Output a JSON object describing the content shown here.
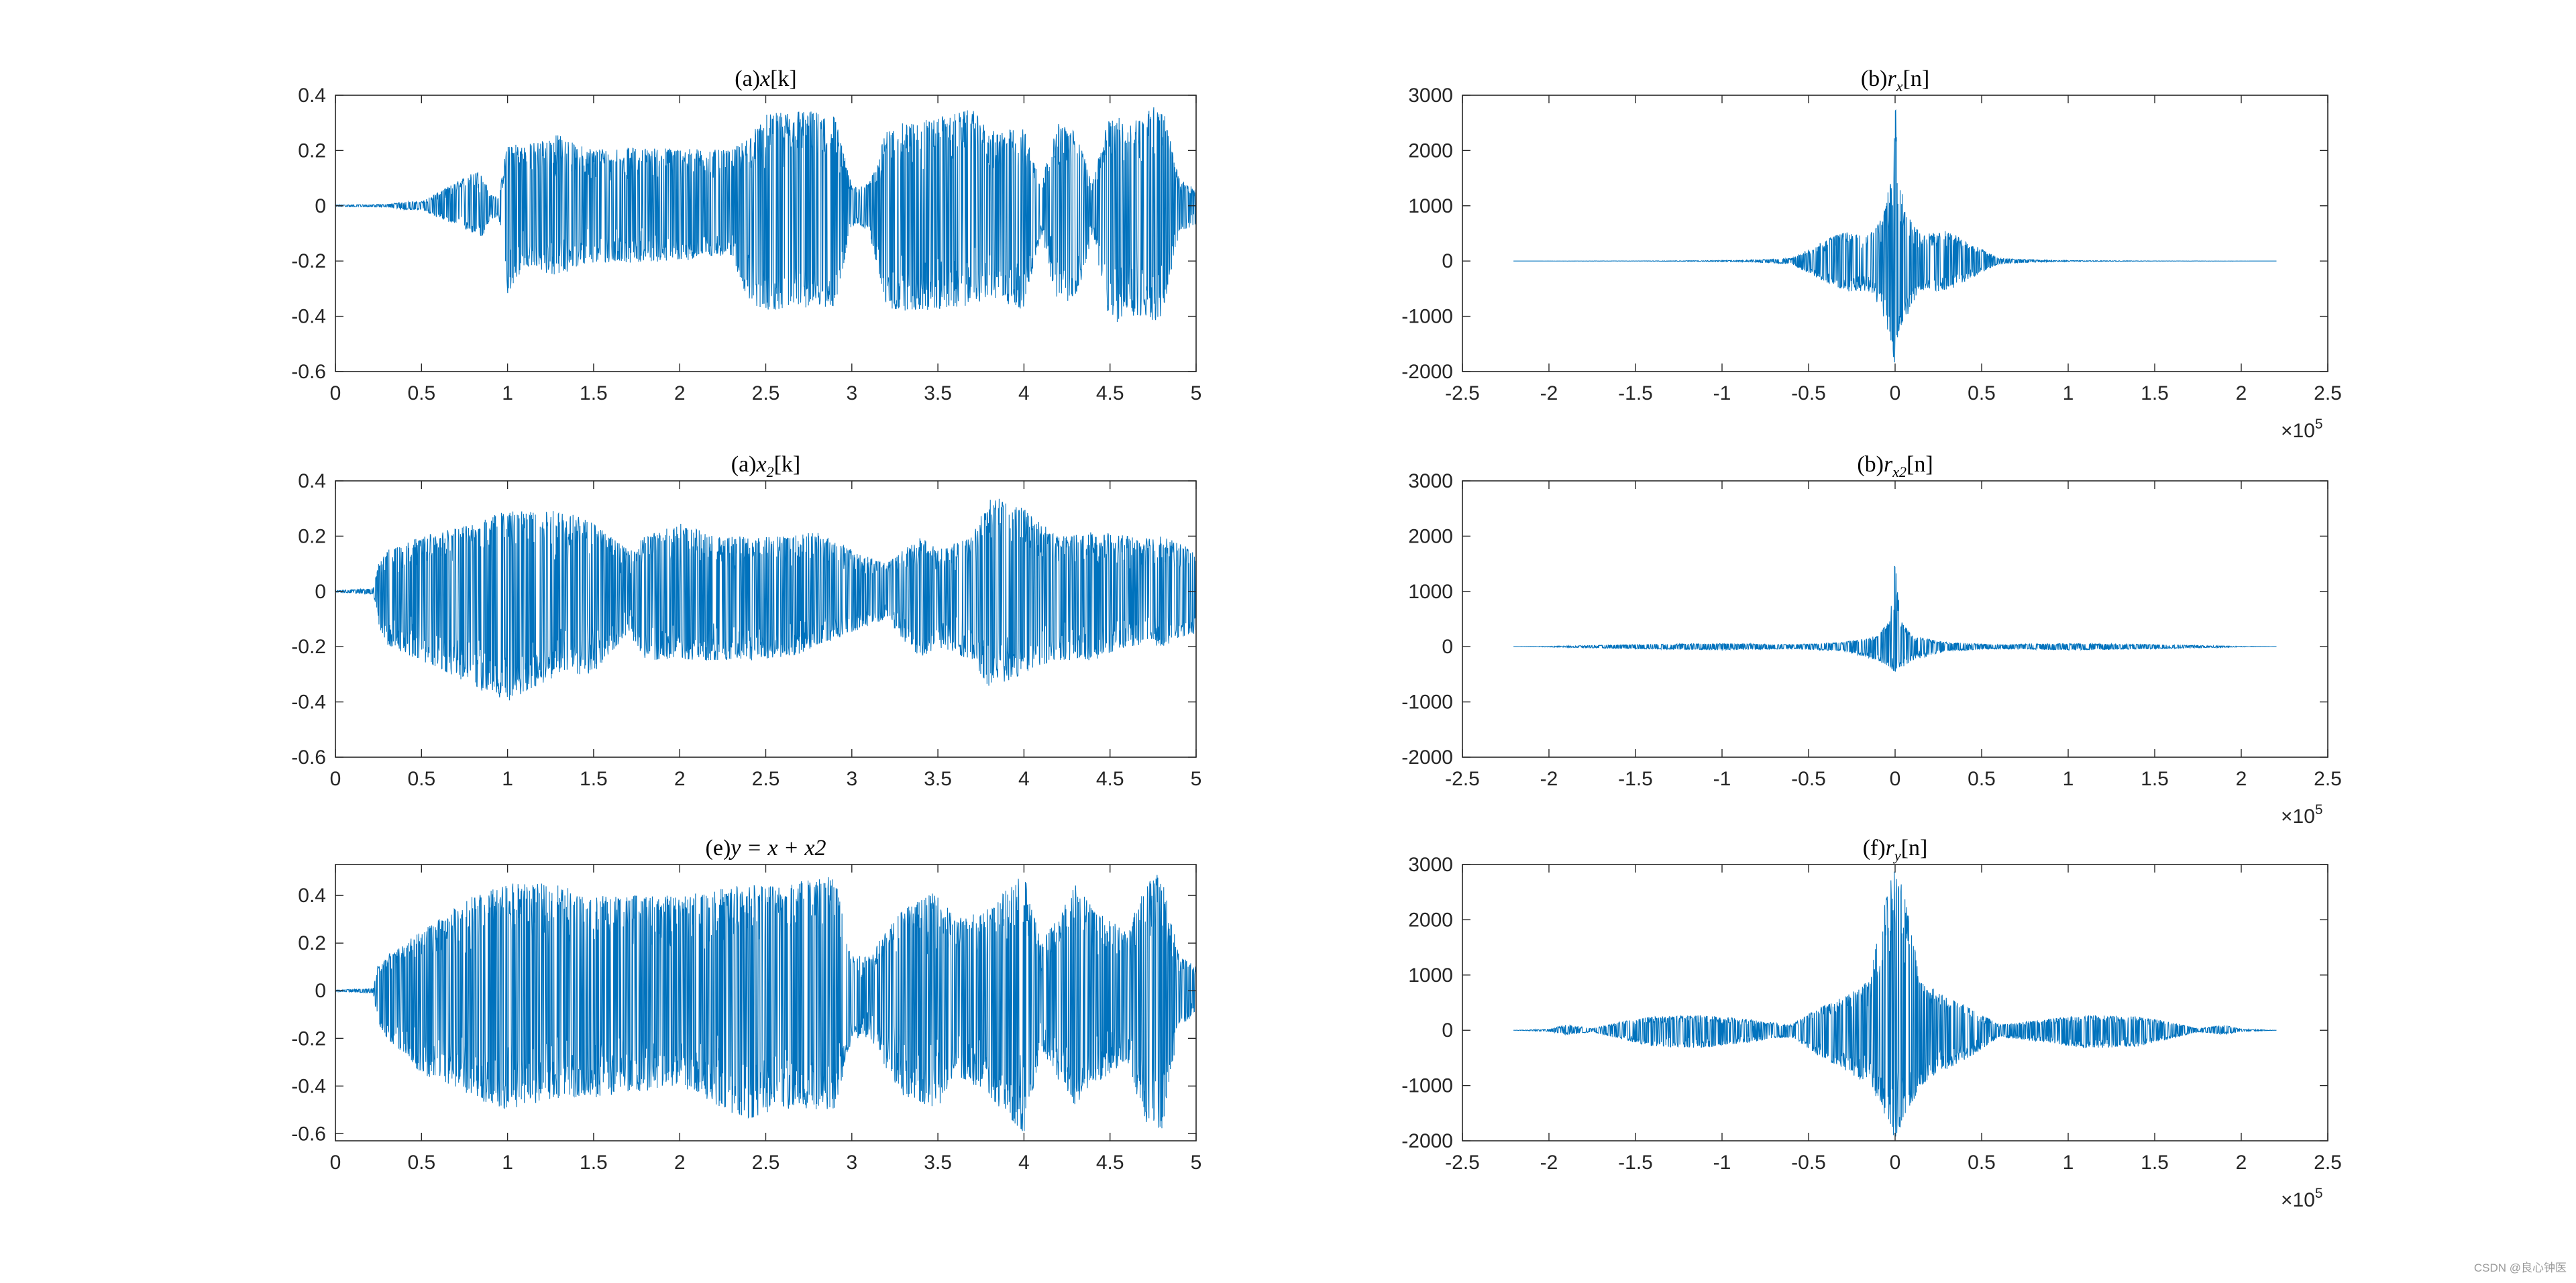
{
  "colors": {
    "signal": "#0072BD",
    "axes": "#262626",
    "background": "#ffffff"
  },
  "watermark": "CSDN @良心钟医",
  "chart_data": [
    {
      "id": "a",
      "type": "line",
      "title_prefix": "(a)",
      "title_var": "x",
      "title_sub": "",
      "title_arg": "[k]",
      "xlim": [
        0,
        5
      ],
      "ylim": [
        -0.6,
        0.4
      ],
      "xticks": [
        0,
        0.5,
        1,
        1.5,
        2,
        2.5,
        3,
        3.5,
        4,
        4.5,
        5
      ],
      "yticks": [
        -0.6,
        -0.4,
        -0.2,
        0,
        0.2,
        0.4
      ],
      "xtick_labels": [
        "0",
        "0.5",
        "1",
        "1.5",
        "2",
        "2.5",
        "3",
        "3.5",
        "4",
        "4.5",
        "5"
      ],
      "ytick_labels": [
        "-0.6",
        "-0.4",
        "-0.2",
        "0",
        "0.2",
        "0.4"
      ],
      "exponent_label": "",
      "envelope": {
        "x": [
          0,
          0.3,
          0.4,
          0.5,
          0.8,
          0.85,
          0.9,
          0.95,
          1.0,
          1.1,
          1.3,
          1.4,
          1.5,
          2.0,
          2.3,
          2.4,
          2.5,
          2.7,
          2.9,
          3.0,
          3.1,
          3.2,
          3.3,
          3.5,
          3.7,
          3.8,
          4.0,
          4.1,
          4.2,
          4.3,
          4.4,
          4.5,
          4.6,
          4.8,
          4.9,
          5.0
        ],
        "upper": [
          0.003,
          0.005,
          0.015,
          0.015,
          0.12,
          0.13,
          0.04,
          0.03,
          0.24,
          0.22,
          0.26,
          0.22,
          0.21,
          0.21,
          0.2,
          0.25,
          0.33,
          0.35,
          0.33,
          0.07,
          0.08,
          0.27,
          0.3,
          0.32,
          0.35,
          0.27,
          0.28,
          0.09,
          0.3,
          0.27,
          0.09,
          0.34,
          0.3,
          0.38,
          0.1,
          0.06
        ],
        "lower": [
          -0.003,
          -0.005,
          -0.015,
          -0.015,
          -0.1,
          -0.12,
          -0.05,
          -0.04,
          -0.32,
          -0.22,
          -0.26,
          -0.22,
          -0.21,
          -0.2,
          -0.18,
          -0.35,
          -0.38,
          -0.37,
          -0.37,
          -0.07,
          -0.09,
          -0.38,
          -0.38,
          -0.38,
          -0.36,
          -0.33,
          -0.38,
          -0.1,
          -0.38,
          -0.35,
          -0.1,
          -0.44,
          -0.4,
          -0.42,
          -0.1,
          -0.07
        ]
      }
    },
    {
      "id": "b",
      "type": "line",
      "title_prefix": "(b)",
      "title_var": "r",
      "title_sub": "x",
      "title_arg": "[n]",
      "xlim": [
        -250000,
        250000
      ],
      "ylim": [
        -2000,
        3000
      ],
      "xticks": [
        -250000,
        -200000,
        -150000,
        -100000,
        -50000,
        0,
        50000,
        100000,
        150000,
        200000,
        250000
      ],
      "yticks": [
        -2000,
        -1000,
        0,
        1000,
        2000,
        3000
      ],
      "xtick_labels": [
        "-2.5",
        "-2",
        "-1.5",
        "-1",
        "-0.5",
        "0",
        "0.5",
        "1",
        "1.5",
        "2",
        "2.5"
      ],
      "ytick_labels": [
        "-2000",
        "-1000",
        "0",
        "1000",
        "2000",
        "3000"
      ],
      "exponent_label": "×10",
      "exponent_power": "5",
      "envelope": {
        "x": [
          -220500,
          -150000,
          -90000,
          -60000,
          -45000,
          -30000,
          -15000,
          -8000,
          -2000,
          0,
          2000,
          8000,
          15000,
          30000,
          45000,
          60000,
          90000,
          150000,
          220500
        ],
        "upper": [
          0,
          2,
          10,
          50,
          300,
          550,
          480,
          800,
          1500,
          3000,
          1500,
          800,
          480,
          550,
          300,
          50,
          10,
          2,
          0
        ],
        "lower": [
          0,
          -2,
          -10,
          -50,
          -300,
          -550,
          -550,
          -900,
          -1500,
          -2000,
          -1500,
          -900,
          -550,
          -550,
          -300,
          -50,
          -10,
          -2,
          0
        ]
      }
    },
    {
      "id": "c",
      "type": "line",
      "title_prefix": "(a)",
      "title_var": "x",
      "title_sub": "2",
      "title_arg": "[k]",
      "xlim": [
        0,
        5
      ],
      "ylim": [
        -0.6,
        0.4
      ],
      "xticks": [
        0,
        0.5,
        1,
        1.5,
        2,
        2.5,
        3,
        3.5,
        4,
        4.5,
        5
      ],
      "yticks": [
        -0.6,
        -0.4,
        -0.2,
        0,
        0.2,
        0.4
      ],
      "xtick_labels": [
        "0",
        "0.5",
        "1",
        "1.5",
        "2",
        "2.5",
        "3",
        "3.5",
        "4",
        "4.5",
        "5"
      ],
      "ytick_labels": [
        "-0.6",
        "-0.4",
        "-0.2",
        "0",
        "0.2",
        "0.4"
      ],
      "exponent_label": "",
      "envelope": {
        "x": [
          0,
          0.22,
          0.25,
          0.3,
          0.5,
          0.8,
          1.0,
          1.3,
          1.5,
          1.7,
          1.8,
          2.0,
          2.2,
          2.4,
          2.6,
          2.8,
          3.0,
          3.2,
          3.4,
          3.5,
          3.7,
          3.8,
          4.0,
          4.2,
          4.4,
          4.6,
          4.8,
          5.0
        ],
        "upper": [
          0.003,
          0.01,
          0.1,
          0.15,
          0.2,
          0.25,
          0.3,
          0.3,
          0.25,
          0.15,
          0.2,
          0.25,
          0.2,
          0.2,
          0.2,
          0.22,
          0.15,
          0.1,
          0.2,
          0.15,
          0.2,
          0.35,
          0.3,
          0.2,
          0.22,
          0.2,
          0.2,
          0.15
        ],
        "lower": [
          -0.003,
          -0.01,
          -0.12,
          -0.2,
          -0.25,
          -0.35,
          -0.4,
          -0.3,
          -0.3,
          -0.15,
          -0.25,
          -0.25,
          -0.25,
          -0.25,
          -0.25,
          -0.2,
          -0.15,
          -0.1,
          -0.25,
          -0.2,
          -0.25,
          -0.35,
          -0.3,
          -0.25,
          -0.25,
          -0.2,
          -0.2,
          -0.15
        ]
      }
    },
    {
      "id": "d",
      "type": "line",
      "title_prefix": "(b)",
      "title_var": "r",
      "title_sub": "x2",
      "title_arg": "[n]",
      "xlim": [
        -250000,
        250000
      ],
      "ylim": [
        -2000,
        3000
      ],
      "xticks": [
        -250000,
        -200000,
        -150000,
        -100000,
        -50000,
        0,
        50000,
        100000,
        150000,
        200000,
        250000
      ],
      "yticks": [
        -2000,
        -1000,
        0,
        1000,
        2000,
        3000
      ],
      "xtick_labels": [
        "-2.5",
        "-2",
        "-1.5",
        "-1",
        "-0.5",
        "0",
        "0.5",
        "1",
        "1.5",
        "2",
        "2.5"
      ],
      "ytick_labels": [
        "-2000",
        "-1000",
        "0",
        "1000",
        "2000",
        "3000"
      ],
      "exponent_label": "×10",
      "exponent_power": "5",
      "envelope": {
        "x": [
          -220500,
          -200000,
          -150000,
          -100000,
          -60000,
          -30000,
          -10000,
          -3000,
          0,
          3000,
          10000,
          30000,
          60000,
          100000,
          150000,
          200000,
          220500
        ],
        "upper": [
          0,
          5,
          40,
          60,
          40,
          80,
          200,
          500,
          1600,
          500,
          200,
          80,
          40,
          60,
          40,
          5,
          0
        ],
        "lower": [
          0,
          -5,
          -40,
          -60,
          -40,
          -80,
          -250,
          -400,
          -500,
          -400,
          -250,
          -80,
          -40,
          -60,
          -40,
          -5,
          0
        ]
      }
    },
    {
      "id": "e",
      "type": "line",
      "title_prefix": "(e)",
      "title_var": "y = x + x2",
      "title_sub": "",
      "title_arg": "",
      "xlim": [
        0,
        5
      ],
      "ylim": [
        -0.63,
        0.53
      ],
      "xticks": [
        0,
        0.5,
        1,
        1.5,
        2,
        2.5,
        3,
        3.5,
        4,
        4.5,
        5
      ],
      "yticks": [
        -0.6,
        -0.4,
        -0.2,
        0,
        0.2,
        0.4
      ],
      "xtick_labels": [
        "0",
        "0.5",
        "1",
        "1.5",
        "2",
        "2.5",
        "3",
        "3.5",
        "4",
        "4.5",
        "5"
      ],
      "ytick_labels": [
        "-0.6",
        "-0.4",
        "-0.2",
        "0",
        "0.2",
        "0.4"
      ],
      "exponent_label": "",
      "envelope": {
        "x": [
          0,
          0.22,
          0.25,
          0.3,
          0.5,
          0.8,
          1.0,
          1.3,
          1.5,
          2.0,
          2.4,
          2.6,
          2.9,
          3.0,
          3.1,
          3.3,
          3.5,
          3.6,
          3.8,
          4.0,
          4.1,
          4.3,
          4.4,
          4.6,
          4.7,
          4.8,
          4.9,
          5.0
        ],
        "upper": [
          0.003,
          0.01,
          0.12,
          0.15,
          0.25,
          0.4,
          0.45,
          0.45,
          0.4,
          0.4,
          0.45,
          0.45,
          0.5,
          0.15,
          0.15,
          0.35,
          0.42,
          0.3,
          0.35,
          0.5,
          0.2,
          0.45,
          0.35,
          0.25,
          0.45,
          0.5,
          0.15,
          0.1
        ],
        "lower": [
          -0.003,
          -0.01,
          -0.15,
          -0.2,
          -0.35,
          -0.45,
          -0.5,
          -0.45,
          -0.45,
          -0.4,
          -0.55,
          -0.5,
          -0.5,
          -0.2,
          -0.2,
          -0.45,
          -0.5,
          -0.35,
          -0.45,
          -0.6,
          -0.25,
          -0.5,
          -0.4,
          -0.3,
          -0.55,
          -0.6,
          -0.15,
          -0.1
        ]
      }
    },
    {
      "id": "f",
      "type": "line",
      "title_prefix": "(f)",
      "title_var": "r",
      "title_sub": "y",
      "title_arg": "[n]",
      "xlim": [
        -250000,
        250000
      ],
      "ylim": [
        -2000,
        3000
      ],
      "xticks": [
        -250000,
        -200000,
        -150000,
        -100000,
        -50000,
        0,
        50000,
        100000,
        150000,
        200000,
        250000
      ],
      "yticks": [
        -2000,
        -1000,
        0,
        1000,
        2000,
        3000
      ],
      "xtick_labels": [
        "-2.5",
        "-2",
        "-1.5",
        "-1",
        "-0.5",
        "0",
        "0.5",
        "1",
        "1.5",
        "2",
        "2.5"
      ],
      "ytick_labels": [
        "-2000",
        "-1000",
        "0",
        "1000",
        "2000",
        "3000"
      ],
      "exponent_label": "×10",
      "exponent_power": "5",
      "envelope": {
        "x": [
          -220500,
          -200000,
          -190000,
          -175000,
          -160000,
          -140000,
          -110000,
          -80000,
          -60000,
          -45000,
          -30000,
          -15000,
          -5000,
          0,
          5000,
          15000,
          30000,
          45000,
          60000,
          80000,
          110000,
          140000,
          160000,
          175000,
          190000,
          200000,
          220500
        ],
        "upper": [
          0,
          20,
          100,
          30,
          150,
          250,
          280,
          180,
          100,
          400,
          600,
          900,
          2500,
          3000,
          2500,
          900,
          600,
          400,
          100,
          180,
          280,
          250,
          150,
          30,
          100,
          20,
          0
        ],
        "lower": [
          0,
          -20,
          -80,
          -30,
          -150,
          -300,
          -320,
          -200,
          -120,
          -450,
          -700,
          -1000,
          -1600,
          -2000,
          -1600,
          -1000,
          -700,
          -450,
          -120,
          -200,
          -320,
          -300,
          -150,
          -30,
          -80,
          -20,
          0
        ]
      }
    }
  ]
}
